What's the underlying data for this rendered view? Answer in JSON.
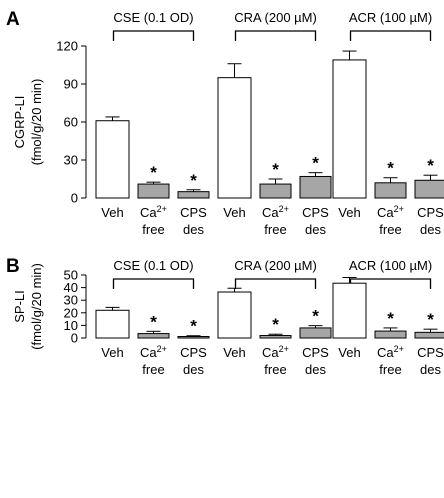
{
  "chart_data": [
    {
      "type": "bar",
      "panel_label": "A",
      "ylabel": "CGRP-LI",
      "ylabel_unit": "(fmol/g/20 min)",
      "ylim": [
        0,
        120
      ],
      "yticks": [
        0,
        30,
        60,
        90,
        120
      ],
      "groups": [
        {
          "label": "CSE (0.1 OD)",
          "categories": [
            {
              "line1": "Veh",
              "line2": ""
            },
            {
              "line1": "Ca",
              "sup": "2+",
              "line2": "free"
            },
            {
              "line1": "CPS",
              "line2": "des"
            }
          ],
          "values": [
            61,
            11,
            5
          ],
          "errors": [
            3,
            1.5,
            1.5
          ],
          "significance": [
            "",
            "*",
            "*"
          ]
        },
        {
          "label": "CRA (200 µM)",
          "categories": [
            {
              "line1": "Veh",
              "line2": ""
            },
            {
              "line1": "Ca",
              "sup": "2+",
              "line2": "free"
            },
            {
              "line1": "CPS",
              "line2": "des"
            }
          ],
          "values": [
            95,
            11,
            17
          ],
          "errors": [
            11,
            4,
            3
          ],
          "significance": [
            "",
            "*",
            "*"
          ]
        },
        {
          "label": "ACR (100 µM)",
          "categories": [
            {
              "line1": "Veh",
              "line2": ""
            },
            {
              "line1": "Ca",
              "sup": "2+",
              "line2": "free"
            },
            {
              "line1": "CPS",
              "line2": "des"
            }
          ],
          "values": [
            109,
            12,
            14
          ],
          "errors": [
            7,
            4,
            4
          ],
          "significance": [
            "",
            "*",
            "*"
          ]
        }
      ]
    },
    {
      "type": "bar",
      "panel_label": "B",
      "ylabel": "SP-LI",
      "ylabel_unit": "(fmol/g/20 min)",
      "ylim": [
        0,
        50
      ],
      "yticks": [
        0,
        10,
        20,
        30,
        40,
        50
      ],
      "groups": [
        {
          "label": "CSE (0.1 OD)",
          "categories": [
            {
              "line1": "Veh",
              "line2": ""
            },
            {
              "line1": "Ca",
              "sup": "2+",
              "line2": "free"
            },
            {
              "line1": "CPS",
              "line2": "des"
            }
          ],
          "values": [
            22,
            3.5,
            1.2
          ],
          "errors": [
            2.3,
            1.8,
            0.6
          ],
          "significance": [
            "",
            "*",
            "*"
          ]
        },
        {
          "label": "CRA (200 µM)",
          "categories": [
            {
              "line1": "Veh",
              "line2": ""
            },
            {
              "line1": "Ca",
              "sup": "2+",
              "line2": "free"
            },
            {
              "line1": "CPS",
              "line2": "des"
            }
          ],
          "values": [
            36.5,
            2,
            8
          ],
          "errors": [
            3,
            1,
            1.8
          ],
          "significance": [
            "",
            "*",
            "*"
          ]
        },
        {
          "label": "ACR (100 µM)",
          "categories": [
            {
              "line1": "Veh",
              "line2": ""
            },
            {
              "line1": "Ca",
              "sup": "2+",
              "line2": "free"
            },
            {
              "line1": "CPS",
              "line2": "des"
            }
          ],
          "values": [
            43.5,
            5.5,
            4.5
          ],
          "errors": [
            4.5,
            2.5,
            2.5
          ],
          "significance": [
            "",
            "*",
            "*"
          ]
        }
      ]
    }
  ],
  "colors": {
    "veh_fill": "#ffffff",
    "treated_fill": "#a6a6a6",
    "stroke": "#000000"
  }
}
